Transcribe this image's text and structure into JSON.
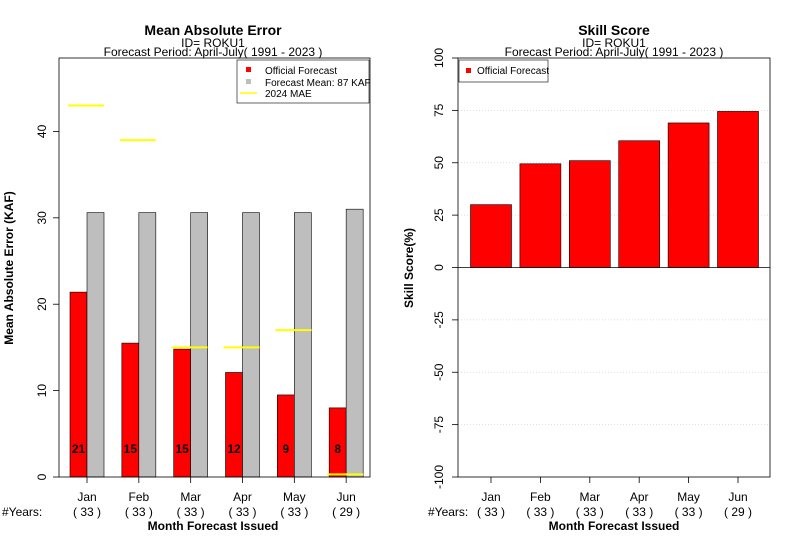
{
  "chart_data": [
    {
      "type": "bar",
      "title": "Mean Absolute Error",
      "subtitle_id": "ID= ROKU1",
      "subtitle_period": "Forecast Period: April-July( 1991 - 2023 )",
      "xlabel": "Month Forecast Issued",
      "ylabel": "Mean Absolute Error (KAF)",
      "ylim": [
        0,
        48.5
      ],
      "yticks": [
        "0",
        "10",
        "20",
        "30",
        "40"
      ],
      "categories": [
        "Jan",
        "Feb",
        "Mar",
        "Apr",
        "May",
        "Jun"
      ],
      "years_label": "#Years:",
      "years": [
        "( 33 )",
        "( 33 )",
        "( 33 )",
        "( 33 )",
        "( 33 )",
        "( 29 )"
      ],
      "series": [
        {
          "name": "Official Forecast",
          "values": [
            21.4,
            15.5,
            14.8,
            12.1,
            9.5,
            8.0
          ],
          "color": "#ff0000"
        },
        {
          "name": "Forecast Mean: 87 KAF",
          "values": [
            30.6,
            30.6,
            30.6,
            30.6,
            30.6,
            31.0
          ],
          "color": "#bebebe"
        },
        {
          "name": " 2024  MAE",
          "values": [
            43.0,
            39.0,
            15.0,
            15.0,
            17.0,
            0.3
          ],
          "color": "#ffff00"
        }
      ],
      "bar_labels": [
        "21",
        "15",
        "15",
        "12",
        "9",
        "8"
      ],
      "legend_position": "top-right",
      "grid": false
    },
    {
      "type": "bar",
      "title": "Skill Score",
      "subtitle_id": "ID= ROKU1",
      "subtitle_period": "Forecast Period: April-July( 1991 - 2023 )",
      "xlabel": "Month Forecast Issued",
      "ylabel": "Skill Score(%)",
      "ylim": [
        -100,
        100
      ],
      "yticks": [
        "-100",
        "-75",
        "-50",
        "-25",
        "0",
        "25",
        "50",
        "75",
        "100"
      ],
      "categories": [
        "Jan",
        "Feb",
        "Mar",
        "Apr",
        "May",
        "Jun"
      ],
      "years_label": "#Years:",
      "years": [
        "( 33 )",
        "( 33 )",
        "( 33 )",
        "( 33 )",
        "( 33 )",
        "( 29 )"
      ],
      "series": [
        {
          "name": "Official Forecast",
          "values": [
            30,
            49.5,
            51,
            60.5,
            69,
            74.5
          ],
          "color": "#ff0000"
        }
      ],
      "legend_position": "top-left",
      "grid": true
    }
  ]
}
